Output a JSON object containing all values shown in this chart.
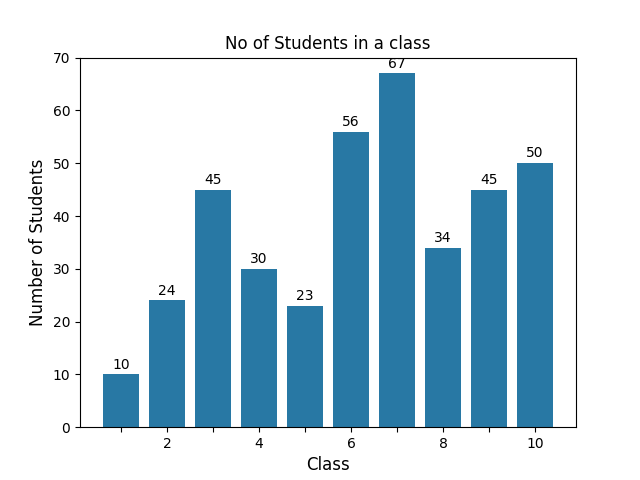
{
  "classes": [
    1,
    2,
    3,
    4,
    5,
    6,
    7,
    8,
    9,
    10
  ],
  "values": [
    10,
    24,
    45,
    30,
    23,
    56,
    67,
    34,
    45,
    50
  ],
  "bar_color": "#2878a4",
  "title": "No of Students in a class",
  "xlabel": "Class",
  "ylabel": "Number of Students",
  "ylim": [
    0,
    70
  ],
  "title_fontsize": 12,
  "label_fontsize": 12,
  "tick_fontsize": 10,
  "annot_fontsize": 10
}
